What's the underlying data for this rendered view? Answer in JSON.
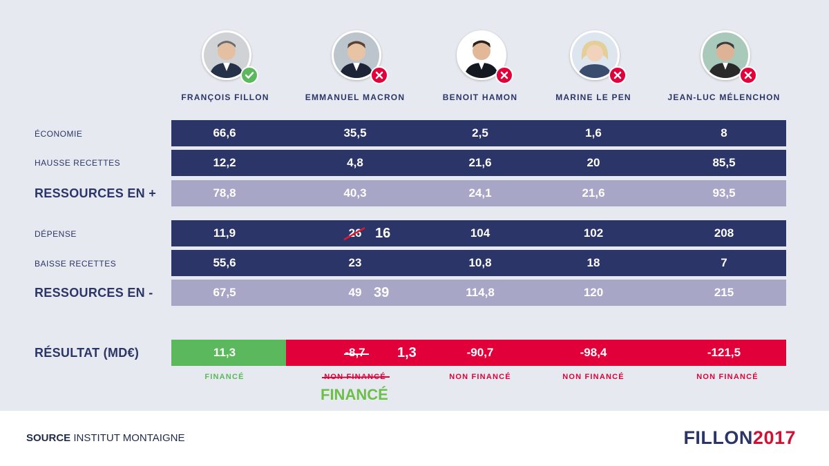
{
  "colors": {
    "navy": "#2c3567",
    "lavender": "#a7a6c6",
    "green": "#5cb85c",
    "red": "#e2003a",
    "bright_green": "#6cc04a"
  },
  "candidates": [
    {
      "name": "FRANÇOIS FILLON",
      "badge": "check-icon"
    },
    {
      "name": "EMMANUEL MACRON",
      "badge": "cross-icon"
    },
    {
      "name": "BENOIT HAMON",
      "badge": "cross-icon"
    },
    {
      "name": "MARINE LE PEN",
      "badge": "cross-icon"
    },
    {
      "name": "JEAN-LUC MÉLENCHON",
      "badge": "cross-icon"
    }
  ],
  "chart_data": {
    "type": "table",
    "columns": [
      "FRANÇOIS FILLON",
      "EMMANUEL MACRON",
      "BENOIT HAMON",
      "MARINE LE PEN",
      "JEAN-LUC MÉLENCHON"
    ],
    "rows": [
      {
        "label": "ÉCONOMIE",
        "values": [
          "66,6",
          "35,5",
          "2,5",
          "1,6",
          "8"
        ]
      },
      {
        "label": "HAUSSE RECETTES",
        "values": [
          "12,2",
          "4,8",
          "21,6",
          "20",
          "85,5"
        ]
      },
      {
        "label": "RESSOURCES EN +",
        "values": [
          "78,8",
          "40,3",
          "24,1",
          "21,6",
          "93,5"
        ]
      },
      {
        "label": "DÉPENSE",
        "values": [
          "11,9",
          "26",
          "104",
          "102",
          "208"
        ]
      },
      {
        "label": "BAISSE RECETTES",
        "values": [
          "55,6",
          "23",
          "10,8",
          "18",
          "7"
        ]
      },
      {
        "label": "RESSOURCES EN -",
        "values": [
          "67,5",
          "49",
          "114,8",
          "120",
          "215"
        ]
      },
      {
        "label": "RÉSULTAT (MD€)",
        "values": [
          "11,3",
          "-8,7",
          "-90,7",
          "-98,4",
          "-121,5"
        ]
      }
    ],
    "corrections": {
      "depense_macron": "16",
      "ressources_moins_macron": "39",
      "resultat_macron": "1,3"
    },
    "status": [
      "FINANCÉ",
      "NON FINANCÉ",
      "NON FINANCÉ",
      "NON FINANCÉ",
      "NON FINANCÉ"
    ],
    "macron_status_correction": "FINANCÉ"
  },
  "footer": {
    "source_label": "SOURCE",
    "source_name": "INSTITUT MONTAIGNE",
    "brand_part1": "FILLON",
    "brand_part2": "2017"
  }
}
